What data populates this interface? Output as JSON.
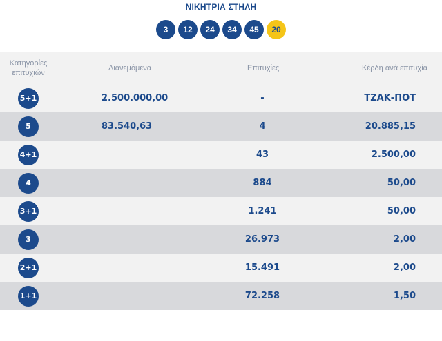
{
  "header": {
    "title": "ΝΙΚΗΤΡΙΑ ΣΤΗΛΗ",
    "numbers": [
      "3",
      "12",
      "24",
      "34",
      "45"
    ],
    "joker": "20"
  },
  "table": {
    "columns": {
      "category_line1": "Κατηγορίες",
      "category_line2": "επιτυχιών",
      "distributed": "Διανεμόμενα",
      "winners": "Επιτυχίες",
      "prize": "Κέρδη ανά επιτυχία"
    },
    "rows": [
      {
        "category": "5+1",
        "distributed": "2.500.000,00",
        "winners": "-",
        "prize": "ΤΖΑΚ-ΠΟΤ"
      },
      {
        "category": "5",
        "distributed": "83.540,63",
        "winners": "4",
        "prize": "20.885,15"
      },
      {
        "category": "4+1",
        "distributed": "",
        "winners": "43",
        "prize": "2.500,00"
      },
      {
        "category": "4",
        "distributed": "",
        "winners": "884",
        "prize": "50,00"
      },
      {
        "category": "3+1",
        "distributed": "",
        "winners": "1.241",
        "prize": "50,00"
      },
      {
        "category": "3",
        "distributed": "",
        "winners": "26.973",
        "prize": "2,00"
      },
      {
        "category": "2+1",
        "distributed": "",
        "winners": "15.491",
        "prize": "2,00"
      },
      {
        "category": "1+1",
        "distributed": "",
        "winners": "72.258",
        "prize": "1,50"
      }
    ]
  },
  "colors": {
    "brand_blue": "#1c4a8c",
    "joker_yellow": "#f5c518",
    "row_light": "#f2f2f2",
    "row_dark": "#d8d9dc"
  }
}
